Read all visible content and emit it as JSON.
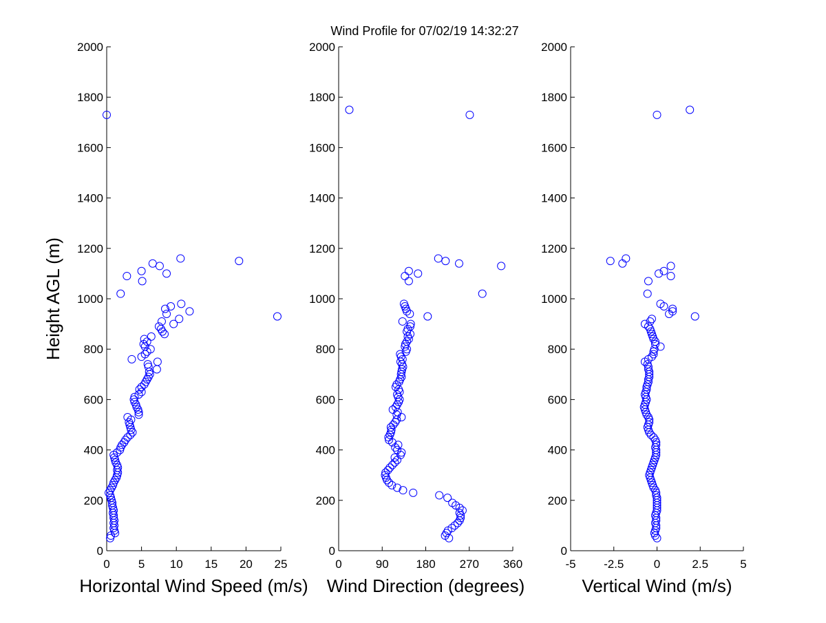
{
  "window": {
    "title": "Wind Profile for  07/02/19 14:32:27"
  },
  "chart_data": [
    {
      "type": "scatter",
      "title": "Wind Profile for  07/02/19 14:32:27",
      "xlabel": "Horizontal Wind Speed (m/s)",
      "ylabel": "Height AGL (m)",
      "xlim": [
        0,
        25
      ],
      "ylim": [
        0,
        2000
      ],
      "xticks": [
        0,
        5,
        10,
        15,
        20,
        25
      ],
      "xticklabels": [
        "0",
        "5",
        "10",
        "15",
        "20",
        "25"
      ],
      "yticks": [
        0,
        200,
        400,
        600,
        800,
        1000,
        1200,
        1400,
        1600,
        1800,
        2000
      ],
      "yticklabels": [
        "0",
        "200",
        "400",
        "600",
        "800",
        "1000",
        "1200",
        "1400",
        "1600",
        "1800",
        "2000"
      ],
      "marker": "circle-open",
      "color": "#0000ff",
      "grid": false,
      "points": [
        [
          0.5,
          50
        ],
        [
          0.6,
          60
        ],
        [
          1.2,
          70
        ],
        [
          1.1,
          80
        ],
        [
          1.0,
          90
        ],
        [
          1.1,
          100
        ],
        [
          1.0,
          110
        ],
        [
          1.1,
          120
        ],
        [
          1.0,
          130
        ],
        [
          1.0,
          140
        ],
        [
          0.9,
          150
        ],
        [
          1.0,
          160
        ],
        [
          0.9,
          170
        ],
        [
          0.8,
          180
        ],
        [
          0.8,
          190
        ],
        [
          0.7,
          200
        ],
        [
          0.6,
          210
        ],
        [
          0.5,
          220
        ],
        [
          0.3,
          230
        ],
        [
          0.5,
          240
        ],
        [
          0.7,
          250
        ],
        [
          0.9,
          260
        ],
        [
          1.0,
          270
        ],
        [
          1.2,
          280
        ],
        [
          1.4,
          290
        ],
        [
          1.5,
          300
        ],
        [
          1.6,
          310
        ],
        [
          1.5,
          320
        ],
        [
          1.6,
          330
        ],
        [
          1.5,
          340
        ],
        [
          1.3,
          350
        ],
        [
          1.2,
          360
        ],
        [
          1.1,
          370
        ],
        [
          1.0,
          380
        ],
        [
          1.5,
          390
        ],
        [
          1.9,
          400
        ],
        [
          2.0,
          410
        ],
        [
          2.2,
          420
        ],
        [
          2.5,
          430
        ],
        [
          2.7,
          440
        ],
        [
          3.0,
          450
        ],
        [
          3.4,
          460
        ],
        [
          3.7,
          470
        ],
        [
          3.5,
          480
        ],
        [
          3.4,
          490
        ],
        [
          3.3,
          500
        ],
        [
          3.2,
          510
        ],
        [
          3.5,
          520
        ],
        [
          3.0,
          530
        ],
        [
          4.6,
          540
        ],
        [
          4.6,
          550
        ],
        [
          4.5,
          560
        ],
        [
          4.3,
          570
        ],
        [
          4.2,
          580
        ],
        [
          4.0,
          590
        ],
        [
          3.9,
          600
        ],
        [
          4.0,
          610
        ],
        [
          4.6,
          620
        ],
        [
          5.0,
          630
        ],
        [
          4.7,
          640
        ],
        [
          5.0,
          650
        ],
        [
          5.4,
          660
        ],
        [
          5.6,
          670
        ],
        [
          5.8,
          680
        ],
        [
          6.0,
          690
        ],
        [
          6.2,
          700
        ],
        [
          6.1,
          710
        ],
        [
          7.2,
          720
        ],
        [
          6.0,
          730
        ],
        [
          5.9,
          740
        ],
        [
          7.3,
          750
        ],
        [
          3.6,
          760
        ],
        [
          5.0,
          770
        ],
        [
          5.5,
          780
        ],
        [
          5.8,
          790
        ],
        [
          6.3,
          800
        ],
        [
          5.5,
          810
        ],
        [
          5.3,
          820
        ],
        [
          5.8,
          830
        ],
        [
          5.4,
          840
        ],
        [
          6.4,
          850
        ],
        [
          8.3,
          860
        ],
        [
          8.0,
          870
        ],
        [
          7.8,
          880
        ],
        [
          7.5,
          890
        ],
        [
          9.6,
          900
        ],
        [
          7.9,
          910
        ],
        [
          10.4,
          920
        ],
        [
          24.5,
          930
        ],
        [
          8.6,
          940
        ],
        [
          11.9,
          950
        ],
        [
          8.4,
          960
        ],
        [
          9.2,
          970
        ],
        [
          10.7,
          980
        ],
        [
          2.0,
          1020
        ],
        [
          5.1,
          1070
        ],
        [
          2.9,
          1090
        ],
        [
          8.6,
          1100
        ],
        [
          5.0,
          1110
        ],
        [
          7.6,
          1130
        ],
        [
          6.6,
          1140
        ],
        [
          19.0,
          1150
        ],
        [
          10.6,
          1160
        ],
        [
          0.0,
          1730
        ]
      ]
    },
    {
      "type": "scatter",
      "xlabel": "Wind Direction (degrees)",
      "xlim": [
        0,
        360
      ],
      "ylim": [
        0,
        2000
      ],
      "xticks": [
        0,
        90,
        180,
        270,
        360
      ],
      "xticklabels": [
        "0",
        "90",
        "180",
        "270",
        "360"
      ],
      "yticks": [
        0,
        200,
        400,
        600,
        800,
        1000,
        1200,
        1400,
        1600,
        1800,
        2000
      ],
      "yticklabels": [
        "0",
        "200",
        "400",
        "600",
        "800",
        "1000",
        "1200",
        "1400",
        "1600",
        "1800",
        "2000"
      ],
      "marker": "circle-open",
      "color": "#0000ff",
      "grid": false,
      "points": [
        [
          228,
          50
        ],
        [
          220,
          60
        ],
        [
          223,
          70
        ],
        [
          226,
          80
        ],
        [
          234,
          90
        ],
        [
          240,
          100
        ],
        [
          246,
          110
        ],
        [
          250,
          120
        ],
        [
          252,
          130
        ],
        [
          252,
          140
        ],
        [
          250,
          150
        ],
        [
          256,
          160
        ],
        [
          250,
          170
        ],
        [
          242,
          180
        ],
        [
          235,
          190
        ],
        [
          225,
          210
        ],
        [
          208,
          220
        ],
        [
          154,
          230
        ],
        [
          133,
          240
        ],
        [
          121,
          250
        ],
        [
          110,
          260
        ],
        [
          104,
          270
        ],
        [
          100,
          280
        ],
        [
          98,
          290
        ],
        [
          96,
          300
        ],
        [
          97,
          310
        ],
        [
          102,
          320
        ],
        [
          106,
          330
        ],
        [
          111,
          340
        ],
        [
          116,
          350
        ],
        [
          121,
          360
        ],
        [
          116,
          370
        ],
        [
          128,
          380
        ],
        [
          130,
          390
        ],
        [
          121,
          400
        ],
        [
          117,
          410
        ],
        [
          123,
          420
        ],
        [
          111,
          430
        ],
        [
          104,
          440
        ],
        [
          103,
          450
        ],
        [
          106,
          460
        ],
        [
          108,
          470
        ],
        [
          109,
          480
        ],
        [
          108,
          490
        ],
        [
          113,
          500
        ],
        [
          117,
          510
        ],
        [
          120,
          520
        ],
        [
          130,
          530
        ],
        [
          120,
          540
        ],
        [
          122,
          550
        ],
        [
          112,
          560
        ],
        [
          118,
          570
        ],
        [
          121,
          580
        ],
        [
          124,
          590
        ],
        [
          126,
          600
        ],
        [
          123,
          610
        ],
        [
          121,
          620
        ],
        [
          126,
          630
        ],
        [
          124,
          640
        ],
        [
          118,
          650
        ],
        [
          120,
          660
        ],
        [
          125,
          670
        ],
        [
          127,
          680
        ],
        [
          130,
          690
        ],
        [
          129,
          700
        ],
        [
          130,
          710
        ],
        [
          131,
          720
        ],
        [
          133,
          730
        ],
        [
          131,
          740
        ],
        [
          128,
          750
        ],
        [
          132,
          760
        ],
        [
          129,
          770
        ],
        [
          127,
          780
        ],
        [
          139,
          790
        ],
        [
          141,
          800
        ],
        [
          137,
          810
        ],
        [
          138,
          820
        ],
        [
          141,
          830
        ],
        [
          145,
          840
        ],
        [
          143,
          850
        ],
        [
          148,
          860
        ],
        [
          141,
          870
        ],
        [
          143,
          880
        ],
        [
          148,
          890
        ],
        [
          149,
          900
        ],
        [
          132,
          910
        ],
        [
          184,
          930
        ],
        [
          147,
          940
        ],
        [
          141,
          950
        ],
        [
          139,
          960
        ],
        [
          137,
          970
        ],
        [
          135,
          980
        ],
        [
          297,
          1020
        ],
        [
          145,
          1070
        ],
        [
          137,
          1090
        ],
        [
          164,
          1100
        ],
        [
          145,
          1110
        ],
        [
          336,
          1130
        ],
        [
          249,
          1140
        ],
        [
          221,
          1150
        ],
        [
          206,
          1160
        ],
        [
          271,
          1730
        ],
        [
          22,
          1750
        ]
      ]
    },
    {
      "type": "scatter",
      "xlabel": "Vertical Wind (m/s)",
      "xlim": [
        -5,
        5
      ],
      "ylim": [
        0,
        2000
      ],
      "xticks": [
        -5,
        -2.5,
        0,
        2.5,
        5
      ],
      "xticklabels": [
        "-5",
        "-2.5",
        "0",
        "2.5",
        "5"
      ],
      "yticks": [
        0,
        200,
        400,
        600,
        800,
        1000,
        1200,
        1400,
        1600,
        1800,
        2000
      ],
      "yticklabels": [
        "0",
        "200",
        "400",
        "600",
        "800",
        "1000",
        "1200",
        "1400",
        "1600",
        "1800",
        "2000"
      ],
      "marker": "circle-open",
      "color": "#0000ff",
      "grid": false,
      "points": [
        [
          0.0,
          50
        ],
        [
          -0.1,
          60
        ],
        [
          -0.15,
          70
        ],
        [
          -0.1,
          80
        ],
        [
          -0.05,
          90
        ],
        [
          -0.05,
          100
        ],
        [
          -0.1,
          110
        ],
        [
          -0.05,
          120
        ],
        [
          -0.05,
          130
        ],
        [
          -0.1,
          140
        ],
        [
          -0.05,
          150
        ],
        [
          0.0,
          160
        ],
        [
          0.0,
          170
        ],
        [
          0.0,
          180
        ],
        [
          0.0,
          190
        ],
        [
          0.0,
          200
        ],
        [
          0.0,
          210
        ],
        [
          -0.05,
          220
        ],
        [
          -0.05,
          230
        ],
        [
          -0.1,
          240
        ],
        [
          -0.2,
          250
        ],
        [
          -0.25,
          260
        ],
        [
          -0.3,
          270
        ],
        [
          -0.35,
          280
        ],
        [
          -0.4,
          290
        ],
        [
          -0.45,
          300
        ],
        [
          -0.4,
          310
        ],
        [
          -0.35,
          320
        ],
        [
          -0.3,
          330
        ],
        [
          -0.25,
          340
        ],
        [
          -0.2,
          350
        ],
        [
          -0.15,
          360
        ],
        [
          -0.1,
          370
        ],
        [
          -0.05,
          380
        ],
        [
          -0.05,
          390
        ],
        [
          -0.05,
          400
        ],
        [
          -0.1,
          410
        ],
        [
          -0.05,
          420
        ],
        [
          -0.05,
          430
        ],
        [
          -0.1,
          440
        ],
        [
          -0.2,
          450
        ],
        [
          -0.35,
          460
        ],
        [
          -0.45,
          470
        ],
        [
          -0.5,
          480
        ],
        [
          -0.55,
          490
        ],
        [
          -0.5,
          500
        ],
        [
          -0.45,
          510
        ],
        [
          -0.45,
          520
        ],
        [
          -0.5,
          530
        ],
        [
          -0.6,
          540
        ],
        [
          -0.65,
          550
        ],
        [
          -0.7,
          560
        ],
        [
          -0.75,
          570
        ],
        [
          -0.7,
          580
        ],
        [
          -0.65,
          590
        ],
        [
          -0.6,
          600
        ],
        [
          -0.65,
          610
        ],
        [
          -0.7,
          620
        ],
        [
          -0.65,
          630
        ],
        [
          -0.6,
          640
        ],
        [
          -0.6,
          650
        ],
        [
          -0.55,
          660
        ],
        [
          -0.5,
          670
        ],
        [
          -0.5,
          680
        ],
        [
          -0.45,
          690
        ],
        [
          -0.45,
          700
        ],
        [
          -0.45,
          710
        ],
        [
          -0.5,
          720
        ],
        [
          -0.5,
          730
        ],
        [
          -0.55,
          740
        ],
        [
          -0.7,
          750
        ],
        [
          -0.5,
          760
        ],
        [
          -0.3,
          770
        ],
        [
          -0.2,
          780
        ],
        [
          -0.2,
          790
        ],
        [
          -0.15,
          800
        ],
        [
          0.2,
          810
        ],
        [
          -0.1,
          820
        ],
        [
          -0.1,
          830
        ],
        [
          -0.2,
          840
        ],
        [
          -0.25,
          850
        ],
        [
          -0.3,
          860
        ],
        [
          -0.35,
          870
        ],
        [
          -0.4,
          880
        ],
        [
          -0.5,
          890
        ],
        [
          -0.7,
          900
        ],
        [
          -0.4,
          910
        ],
        [
          -0.3,
          920
        ],
        [
          2.2,
          930
        ],
        [
          0.7,
          940
        ],
        [
          0.9,
          950
        ],
        [
          0.9,
          960
        ],
        [
          0.4,
          970
        ],
        [
          0.2,
          980
        ],
        [
          -0.55,
          1020
        ],
        [
          -0.5,
          1070
        ],
        [
          0.8,
          1090
        ],
        [
          0.1,
          1100
        ],
        [
          0.4,
          1110
        ],
        [
          0.8,
          1130
        ],
        [
          -2.0,
          1140
        ],
        [
          -2.7,
          1150
        ],
        [
          -1.8,
          1160
        ],
        [
          0.0,
          1730
        ],
        [
          1.9,
          1750
        ]
      ]
    }
  ]
}
